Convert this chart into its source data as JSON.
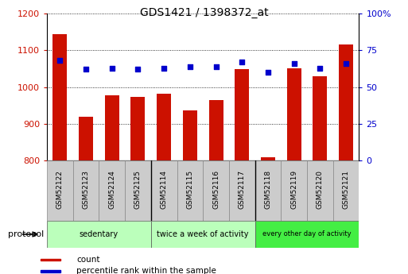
{
  "title": "GDS1421 / 1398372_at",
  "samples": [
    "GSM52122",
    "GSM52123",
    "GSM52124",
    "GSM52125",
    "GSM52114",
    "GSM52115",
    "GSM52116",
    "GSM52117",
    "GSM52118",
    "GSM52119",
    "GSM52120",
    "GSM52121"
  ],
  "counts": [
    1145,
    918,
    977,
    972,
    982,
    937,
    965,
    1048,
    808,
    1052,
    1030,
    1115
  ],
  "percentiles": [
    68,
    62,
    63,
    62,
    63,
    64,
    64,
    67,
    60,
    66,
    63,
    66
  ],
  "groups": [
    {
      "label": "sedentary",
      "start": 0,
      "end": 4,
      "color": "#bbffbb"
    },
    {
      "label": "twice a week of activity",
      "start": 4,
      "end": 8,
      "color": "#bbffbb"
    },
    {
      "label": "every other day of activity",
      "start": 8,
      "end": 12,
      "color": "#44ee44"
    }
  ],
  "ylim_left": [
    800,
    1200
  ],
  "ylim_right": [
    0,
    100
  ],
  "yticks_left": [
    800,
    900,
    1000,
    1100,
    1200
  ],
  "yticks_right": [
    0,
    25,
    50,
    75,
    100
  ],
  "bar_color": "#cc1100",
  "dot_color": "#0000cc",
  "bar_width": 0.55,
  "left_axis_color": "#cc1100",
  "right_axis_color": "#0000cc",
  "legend_items": [
    {
      "label": "count",
      "color": "#cc1100"
    },
    {
      "label": "percentile rank within the sample",
      "color": "#0000cc"
    }
  ],
  "protocol_label": "protocol",
  "sample_box_color": "#cccccc",
  "figsize": [
    5.13,
    3.45
  ],
  "dpi": 100
}
